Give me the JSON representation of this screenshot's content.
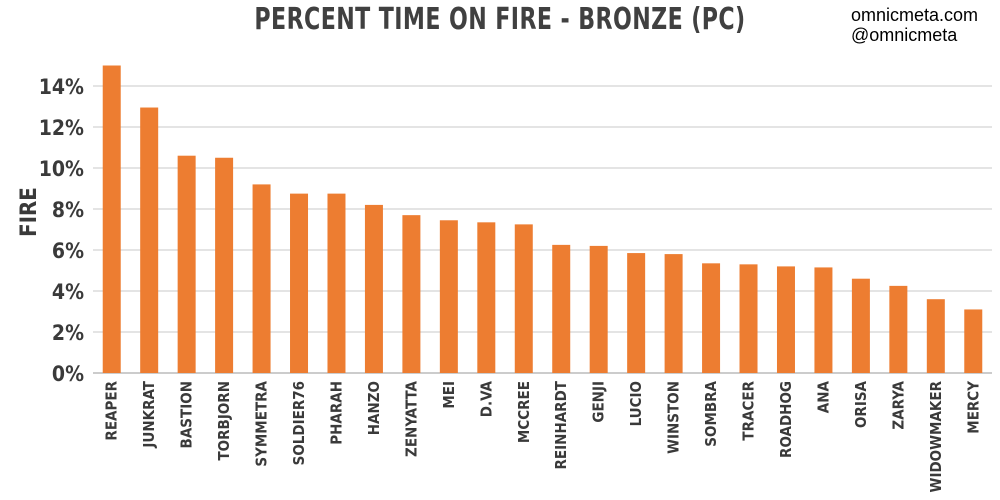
{
  "title": "PERCENT TIME ON FIRE - BRONZE (PC)",
  "watermark": {
    "site": "omnicmeta.com",
    "handle": "@omnicmeta"
  },
  "colors": {
    "bar": "#ED7D31",
    "grid": "#c8c8c8",
    "axis": "#999999",
    "text": "#3a3a3a"
  },
  "chart_data": {
    "type": "bar",
    "title": "PERCENT TIME ON FIRE - BRONZE (PC)",
    "xlabel": "",
    "ylabel": "FIRE",
    "ylim": [
      0,
      14
    ],
    "yticks": [
      0,
      2,
      4,
      6,
      8,
      10,
      12,
      14
    ],
    "ytick_labels": [
      "0%",
      "2%",
      "4%",
      "6%",
      "8%",
      "10%",
      "12%",
      "14%"
    ],
    "grid": true,
    "categories": [
      "REAPER",
      "JUNKRAT",
      "BASTION",
      "TORBJORN",
      "SYMMETRA",
      "SOLDIER76",
      "PHARAH",
      "HANZO",
      "ZENYATTA",
      "MEI",
      "D.VA",
      "MCCREE",
      "REINHARDT",
      "GENJI",
      "LUCIO",
      "WINSTON",
      "SOMBRA",
      "TRACER",
      "ROADHOG",
      "ANA",
      "ORISA",
      "ZARYA",
      "WIDOWMAKER",
      "MERCY"
    ],
    "values": [
      15.0,
      12.95,
      10.6,
      10.5,
      9.2,
      8.75,
      8.75,
      8.2,
      7.7,
      7.45,
      7.35,
      7.25,
      6.25,
      6.2,
      5.85,
      5.8,
      5.35,
      5.3,
      5.2,
      5.15,
      4.6,
      4.25,
      3.6,
      3.1
    ]
  }
}
